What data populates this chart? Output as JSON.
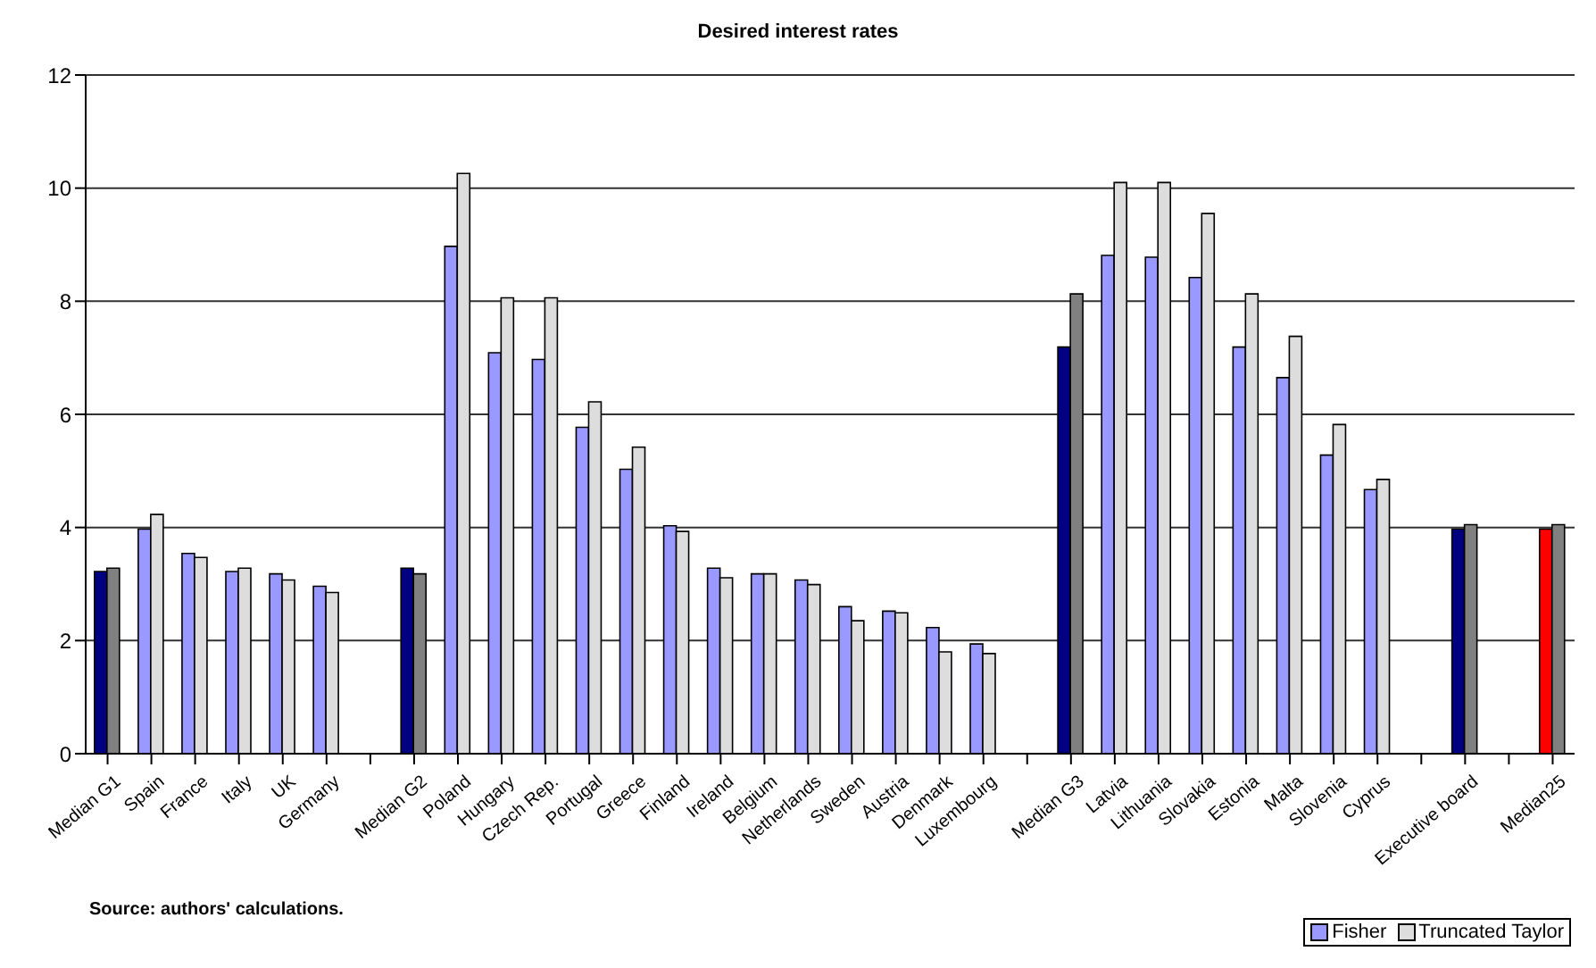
{
  "chart_data": {
    "type": "bar",
    "title": "Desired interest rates",
    "categories": [
      "Median G1",
      "Spain",
      "France",
      "Italy",
      "UK",
      "Germany",
      null,
      "Median G2",
      "Poland",
      "Hungary",
      "Czech Rep.",
      "Portugal",
      "Greece",
      "Finland",
      "Ireland",
      "Belgium",
      "Netherlands",
      "Sweden",
      "Austria",
      "Denmark",
      "Luxembourg",
      null,
      "Median G3",
      "Latvia",
      "Lithuania",
      "Slovakia",
      "Estonia",
      "Malta",
      "Slovenia",
      "Cyprus",
      null,
      "Executive board",
      null,
      "Median25"
    ],
    "series": [
      {
        "name": "Fisher",
        "color": "#9999ff",
        "values": [
          3.22,
          3.97,
          3.54,
          3.22,
          3.18,
          2.96,
          null,
          3.28,
          8.97,
          7.09,
          6.97,
          5.77,
          5.03,
          4.03,
          3.28,
          3.18,
          3.07,
          2.6,
          2.52,
          2.23,
          1.94,
          null,
          7.19,
          8.81,
          8.78,
          8.42,
          7.19,
          6.65,
          5.28,
          4.67,
          null,
          3.97,
          null,
          3.97
        ],
        "colors": [
          "#000080",
          "#9999ff",
          "#9999ff",
          "#9999ff",
          "#9999ff",
          "#9999ff",
          "#9999ff",
          "#000080",
          "#9999ff",
          "#9999ff",
          "#9999ff",
          "#9999ff",
          "#9999ff",
          "#9999ff",
          "#9999ff",
          "#9999ff",
          "#9999ff",
          "#9999ff",
          "#9999ff",
          "#9999ff",
          "#9999ff",
          "#9999ff",
          "#000080",
          "#9999ff",
          "#9999ff",
          "#9999ff",
          "#9999ff",
          "#9999ff",
          "#9999ff",
          "#9999ff",
          "#9999ff",
          "#000080",
          "#9999ff",
          "#ff0000"
        ]
      },
      {
        "name": "Truncated Taylor",
        "color": "#dddddd",
        "values": [
          3.28,
          4.23,
          3.47,
          3.28,
          3.07,
          2.85,
          null,
          3.18,
          10.26,
          8.06,
          8.06,
          6.22,
          5.42,
          3.93,
          3.11,
          3.18,
          2.99,
          2.35,
          2.49,
          1.8,
          1.77,
          null,
          8.13,
          10.1,
          10.1,
          9.55,
          8.13,
          7.38,
          5.82,
          4.85,
          null,
          4.05,
          null,
          4.05
        ],
        "colors": [
          "#808080",
          "#dddddd",
          "#dddddd",
          "#dddddd",
          "#dddddd",
          "#dddddd",
          "#dddddd",
          "#808080",
          "#dddddd",
          "#dddddd",
          "#dddddd",
          "#dddddd",
          "#dddddd",
          "#dddddd",
          "#dddddd",
          "#dddddd",
          "#dddddd",
          "#dddddd",
          "#dddddd",
          "#dddddd",
          "#dddddd",
          "#dddddd",
          "#808080",
          "#dddddd",
          "#dddddd",
          "#dddddd",
          "#dddddd",
          "#dddddd",
          "#dddddd",
          "#dddddd",
          "#dddddd",
          "#808080",
          "#dddddd",
          "#808080"
        ]
      }
    ],
    "ylim": [
      0,
      12
    ],
    "yticks": [
      0,
      2,
      4,
      6,
      8,
      10,
      12
    ],
    "grid": "y",
    "legend": "bottom right",
    "annotations": [
      "Source: authors' calculations."
    ]
  }
}
